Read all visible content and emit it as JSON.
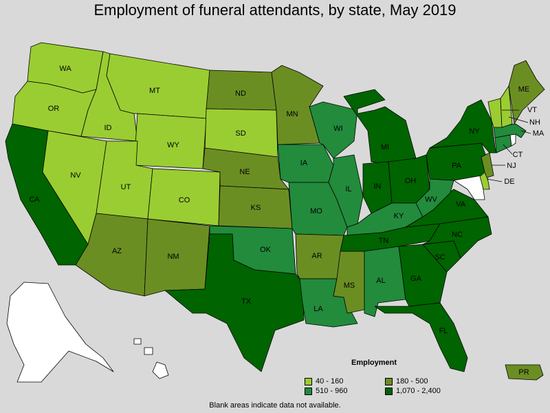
{
  "title": "Employment of funeral attendants, by state, May 2019",
  "colors": {
    "bin1": "#9acd32",
    "bin2": "#6b8e23",
    "bin3": "#228b3c",
    "bin4": "#006400",
    "na": "#ffffff"
  },
  "legend": {
    "title": "Employment",
    "items": [
      {
        "label": "40 - 160",
        "color": "#9acd32"
      },
      {
        "label": "180 - 500",
        "color": "#6b8e23"
      },
      {
        "label": "510 - 960",
        "color": "#228b3c"
      },
      {
        "label": "1,070 - 2,400",
        "color": "#006400"
      }
    ]
  },
  "footnote": "Blank areas indicate data not available.",
  "states": {
    "WA": "bin1",
    "OR": "bin1",
    "ID": "bin1",
    "MT": "bin1",
    "WY": "bin1",
    "NV": "bin1",
    "UT": "bin1",
    "CO": "bin1",
    "SD": "bin1",
    "VT": "bin1",
    "NH": "bin1",
    "DE": "bin1",
    "ND": "bin2",
    "MN": "bin2",
    "NE": "bin2",
    "KS": "bin2",
    "AZ": "bin2",
    "NM": "bin2",
    "AR": "bin2",
    "MS": "bin2",
    "ME": "bin2",
    "NJ": "bin2",
    "PR": "bin2",
    "WI": "bin3",
    "IA": "bin3",
    "MO": "bin3",
    "IL": "bin3",
    "OK": "bin3",
    "KY": "bin3",
    "WV": "bin3",
    "LA": "bin3",
    "AL": "bin3",
    "CT": "bin3",
    "MA": "bin3",
    "CA": "bin4",
    "TX": "bin4",
    "MI": "bin4",
    "IN": "bin4",
    "OH": "bin4",
    "PA": "bin4",
    "NY": "bin4",
    "TN": "bin4",
    "NC": "bin4",
    "SC": "bin4",
    "GA": "bin4",
    "FL": "bin4",
    "VA": "bin4",
    "AK": "na",
    "HI": "na",
    "MD": "na",
    "RI": "na"
  },
  "labels": {
    "WA": "WA",
    "OR": "OR",
    "CA": "CA",
    "ID": "ID",
    "NV": "NV",
    "MT": "MT",
    "WY": "WY",
    "UT": "UT",
    "AZ": "AZ",
    "CO": "CO",
    "NM": "NM",
    "ND": "ND",
    "SD": "SD",
    "NE": "NE",
    "KS": "KS",
    "OK": "OK",
    "TX": "TX",
    "MN": "MN",
    "IA": "IA",
    "MO": "MO",
    "AR": "AR",
    "LA": "LA",
    "WI": "WI",
    "IL": "IL",
    "MS": "MS",
    "MI": "MI",
    "IN": "IN",
    "KY": "KY",
    "TN": "TN",
    "AL": "AL",
    "OH": "OH",
    "WV": "WV",
    "VA": "VA",
    "NC": "NC",
    "SC": "SC",
    "GA": "GA",
    "FL": "FL",
    "PA": "PA",
    "NY": "NY",
    "ME": "ME",
    "VT": "VT",
    "NH": "NH",
    "MA": "MA",
    "CT": "CT",
    "NJ": "NJ",
    "DE": "DE",
    "PR": "PR"
  }
}
